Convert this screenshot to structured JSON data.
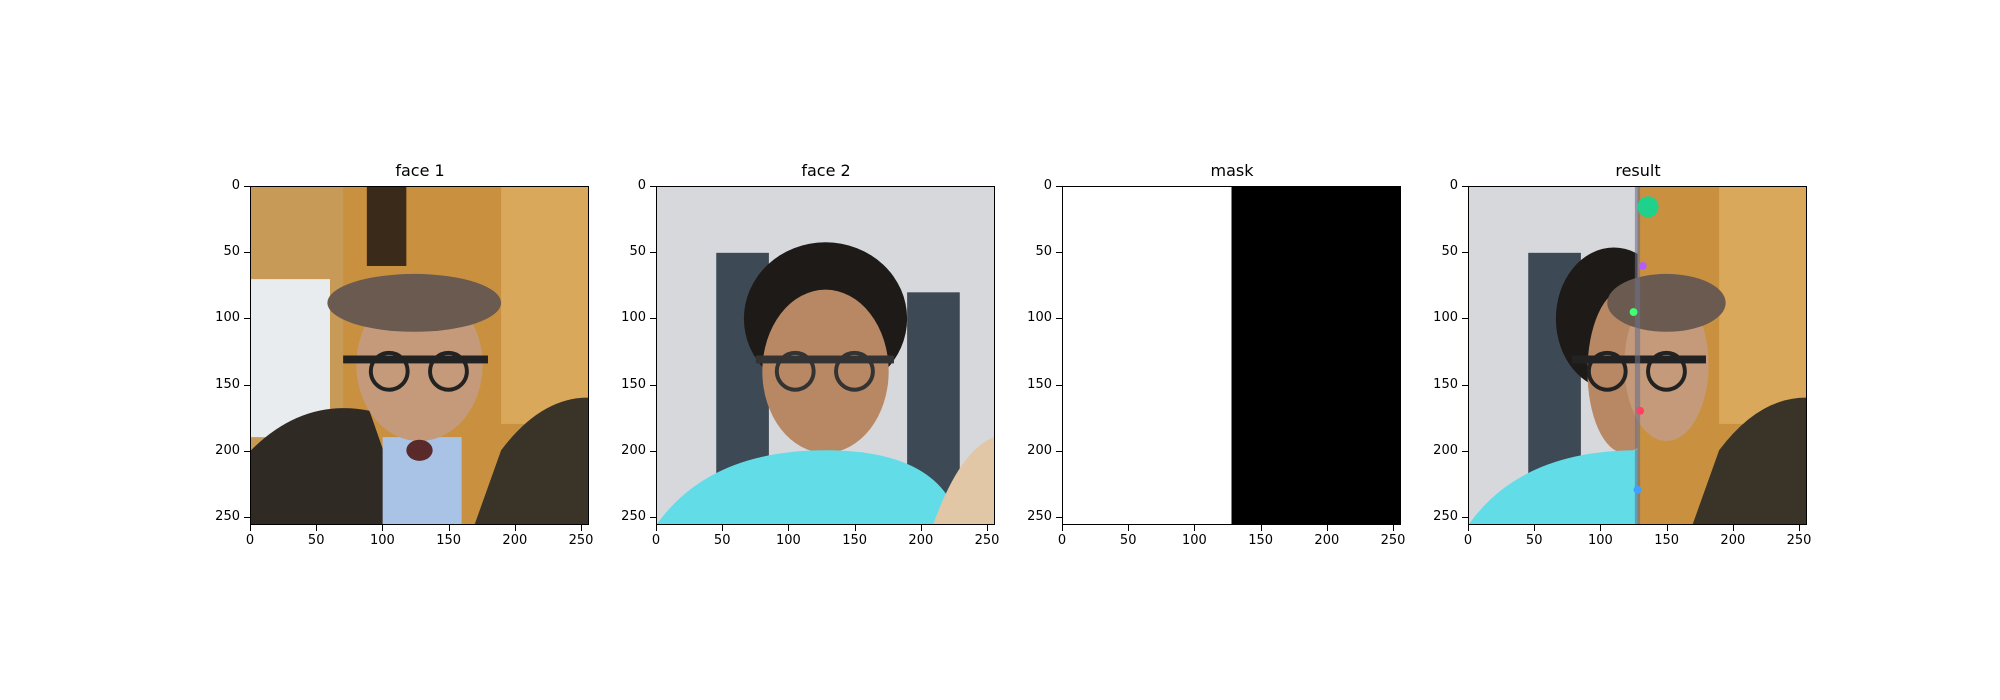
{
  "panels": [
    {
      "id": "face1",
      "title": "face 1",
      "image": "man in brown flat cap and glasses, open mouth"
    },
    {
      "id": "face2",
      "title": "face 2",
      "image": "man in blue polo shirt with glasses, smiling"
    },
    {
      "id": "mask",
      "title": "mask",
      "image": "left half white, right half black"
    },
    {
      "id": "result",
      "title": "result",
      "image": "blend of face 2 (left) and face 1 (right)"
    }
  ],
  "axis": {
    "y_ticks": [
      "0",
      "50",
      "100",
      "150",
      "200",
      "250"
    ],
    "x_ticks": [
      "0",
      "50",
      "100",
      "150",
      "200",
      "250"
    ]
  }
}
